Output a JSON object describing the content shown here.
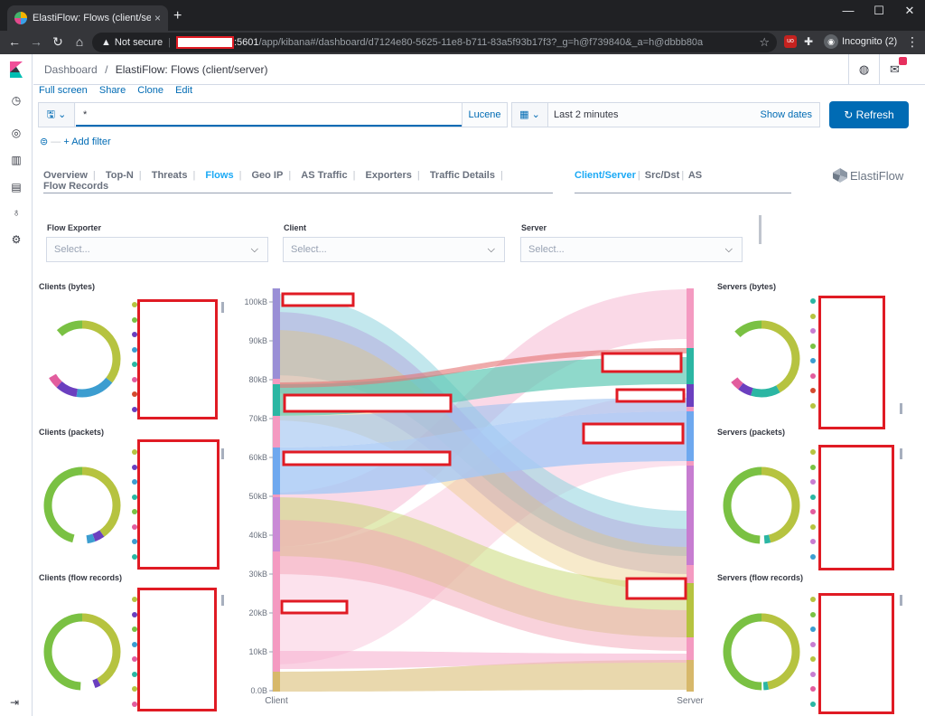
{
  "browser": {
    "tab_title": "ElastiFlow: Flows (client/server) -",
    "tab_close": "×",
    "new_tab": "+",
    "win_min": "—",
    "win_max": "☐",
    "win_close": "✕",
    "security": "Not secure",
    "url_host_rest": ":5601",
    "url_path": "/app/kibana#/dashboard/d7124e80-5625-11e8-b711-83a5f93b17f3?_g=h@f739840&_a=h@dbbb80a",
    "incognito": "Incognito (2)",
    "ext_label": "uo"
  },
  "kibana": {
    "breadcrumb_root": "Dashboard",
    "breadcrumb_sep": "/",
    "breadcrumb_current": "ElastiFlow: Flows (client/server)",
    "menu": [
      "Full screen",
      "Share",
      "Clone",
      "Edit"
    ],
    "query": "*",
    "lucene": "Lucene",
    "time_range": "Last 2 minutes",
    "show_dates": "Show dates",
    "refresh": "Refresh",
    "add_filter": "+ Add filter",
    "filter_dash": "—"
  },
  "dashboard_nav": {
    "items": [
      "Overview",
      "Top-N",
      "Threats",
      "Flows",
      "Geo IP",
      "AS Traffic",
      "Exporters",
      "Traffic Details",
      "Flow Records"
    ],
    "active": "Flows",
    "secondary": [
      "Client/Server",
      "Src/Dst",
      "AS"
    ],
    "secondary_active": "Client/Server",
    "brand": "ElastiFlow"
  },
  "controls": [
    {
      "label": "Flow Exporter",
      "placeholder": "Select..."
    },
    {
      "label": "Client",
      "placeholder": "Select..."
    },
    {
      "label": "Server",
      "placeholder": "Select..."
    }
  ],
  "panels": {
    "clients_bytes": "Clients (bytes)",
    "clients_packets": "Clients (packets)",
    "clients_flows": "Clients (flow records)",
    "servers_bytes": "Servers (bytes)",
    "servers_packets": "Servers (packets)",
    "servers_flows": "Servers (flow records)"
  },
  "colors": {
    "primary": "#006bb4",
    "active_tab": "#1ba9f5",
    "redaction": "#e01b24",
    "donut_main": "#b6c340",
    "donut_green": "#7ac143",
    "donut_blue": "#3c9dd0",
    "donut_purple": "#6b3fbf"
  },
  "chart_data": {
    "type": "sankey",
    "y_axis_ticks": [
      "100kB",
      "90kB",
      "80kB",
      "70kB",
      "60kB",
      "50kB",
      "40kB",
      "30kB",
      "20kB",
      "10kB",
      "0.0B"
    ],
    "x_labels": [
      "Client",
      "Server"
    ],
    "ylim": [
      0,
      104
    ]
  }
}
